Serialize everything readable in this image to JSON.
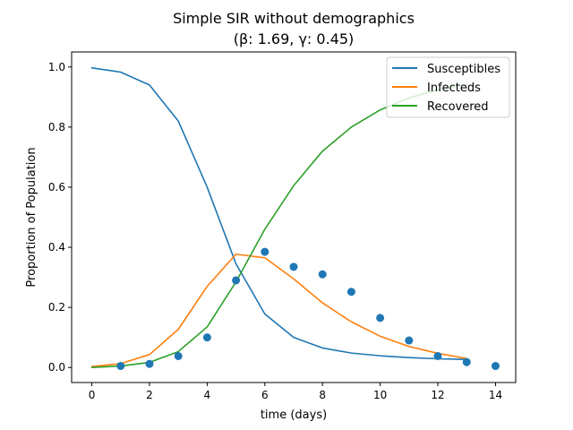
{
  "chart_data": {
    "type": "line",
    "title_line1": "Simple SIR without demographics",
    "title_line2": "(β: 1.69, γ: 0.45)",
    "xlabel": "time (days)",
    "ylabel": "Proportion of Population",
    "xlim": [
      -0.7,
      14.7
    ],
    "ylim": [
      -0.05,
      1.05
    ],
    "xticks": [
      0,
      2,
      4,
      6,
      8,
      10,
      12,
      14
    ],
    "yticks": [
      0.0,
      0.2,
      0.4,
      0.6,
      0.8,
      1.0
    ],
    "ytick_labels": [
      "0.0",
      "0.2",
      "0.4",
      "0.6",
      "0.8",
      "1.0"
    ],
    "grid": false,
    "legend_position": "top-right",
    "series": [
      {
        "name": "Susceptibles",
        "color": "#1f77b4",
        "x": [
          0,
          1,
          2,
          3,
          4,
          5,
          6,
          7,
          8,
          9,
          10,
          11,
          12,
          13
        ],
        "y": [
          0.997,
          0.983,
          0.94,
          0.82,
          0.6,
          0.345,
          0.178,
          0.1,
          0.065,
          0.048,
          0.039,
          0.033,
          0.029,
          0.027
        ]
      },
      {
        "name": "Infecteds",
        "color": "#ff7f0e",
        "x": [
          0,
          1,
          2,
          3,
          4,
          5,
          6,
          7,
          8,
          9,
          10,
          11,
          12,
          13
        ],
        "y": [
          0.003,
          0.013,
          0.043,
          0.127,
          0.27,
          0.377,
          0.365,
          0.295,
          0.215,
          0.152,
          0.104,
          0.07,
          0.047,
          0.03
        ]
      },
      {
        "name": "Recovered",
        "color": "#2ca02c",
        "x": [
          0,
          1,
          2,
          3,
          4,
          5,
          6,
          7,
          8,
          9,
          10,
          11,
          12,
          13
        ],
        "y": [
          0.0,
          0.005,
          0.017,
          0.053,
          0.135,
          0.285,
          0.46,
          0.605,
          0.72,
          0.8,
          0.857,
          0.897,
          0.924,
          0.943
        ]
      }
    ],
    "observed_points": {
      "color": "#1f77b4",
      "x": [
        1,
        2,
        3,
        4,
        5,
        6,
        7,
        8,
        9,
        10,
        11,
        12,
        13,
        14
      ],
      "y": [
        0.005,
        0.012,
        0.038,
        0.1,
        0.29,
        0.385,
        0.335,
        0.31,
        0.252,
        0.165,
        0.09,
        0.038,
        0.018,
        0.005
      ]
    }
  }
}
